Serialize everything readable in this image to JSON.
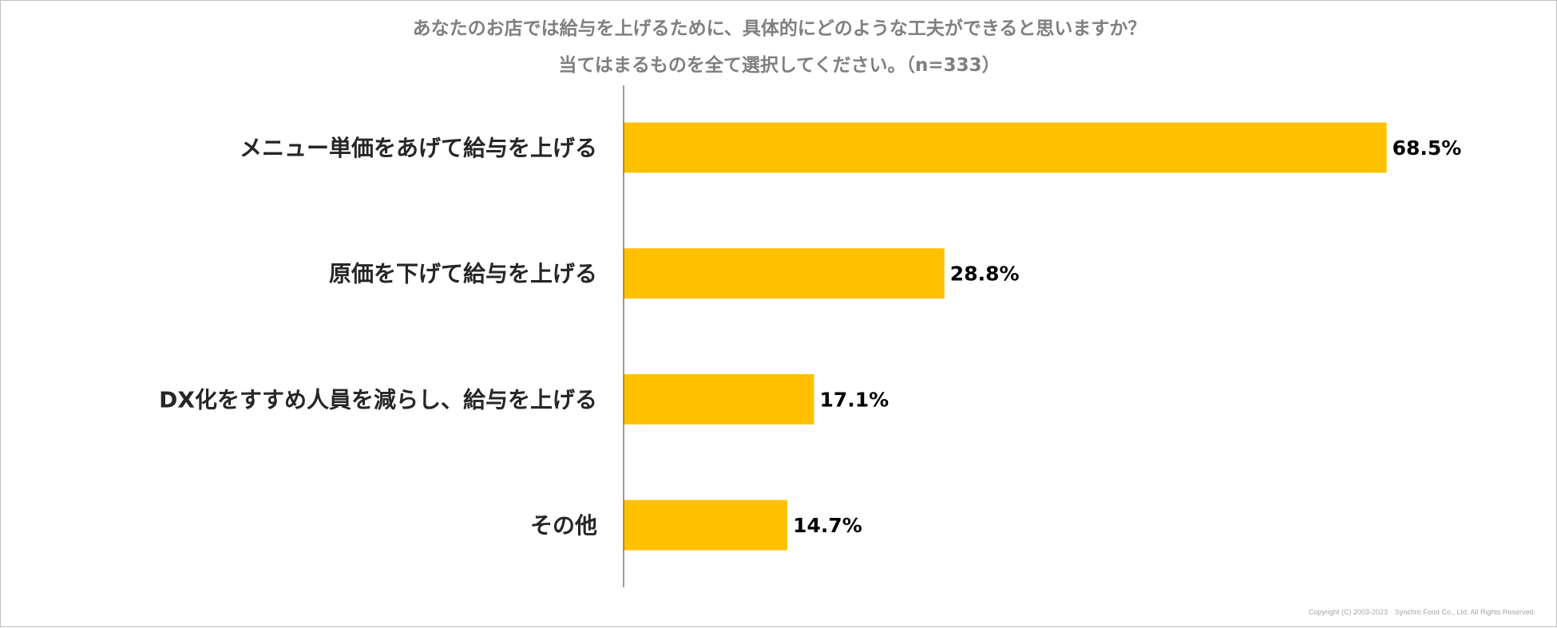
{
  "chart_data": {
    "type": "bar",
    "orientation": "horizontal",
    "title": "あなたのお店では給与を上げるために、具体的にどのような工夫ができると思いますか？",
    "subtitle": "当てはまるものを全て選択してください。（n=333）",
    "categories": [
      "メニュー単価をあげて給与を上げる",
      "原価を下げて給与を上げる",
      "DX化をすすめ人員を減らし、給与を上げる",
      "その他"
    ],
    "values": [
      68.5,
      28.8,
      17.1,
      14.7
    ],
    "value_labels": [
      "68.5%",
      "28.8%",
      "17.1%",
      "14.7%"
    ],
    "unit": "%",
    "xlim": [
      0,
      80
    ],
    "grid": false,
    "legend": "none",
    "bar_color": "#FFC000",
    "axis_color": "#595959"
  },
  "footer": {
    "copyright": "Copyright (C) 2003-2023　Synchro Food Co., Ltd. All Rights Reserved."
  }
}
